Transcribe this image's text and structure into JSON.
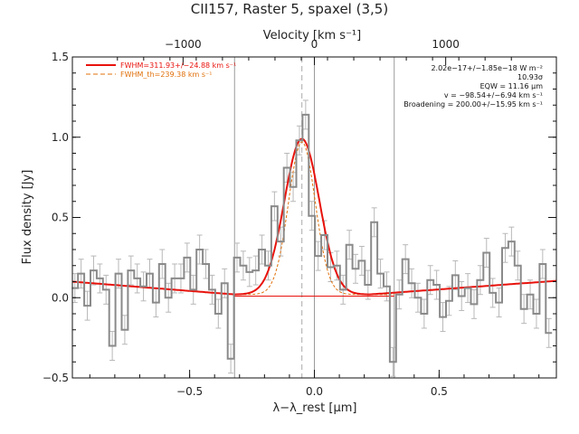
{
  "chart_data": {
    "type": "line",
    "title": "CII157, Raster 5, spaxel (3,5)",
    "xlabel": "λ−λ_rest [μm]",
    "ylabel": "Flux density [Jy]",
    "top_axis_label": "Velocity [km s⁻¹]",
    "xlim": [
      -0.97,
      0.97
    ],
    "ylim": [
      -0.5,
      1.5
    ],
    "x_ticks": [
      {
        "value": -0.5,
        "label": "−0.5"
      },
      {
        "value": 0.0,
        "label": "0.0"
      },
      {
        "value": 0.5,
        "label": "0.5"
      }
    ],
    "y_ticks": [
      {
        "value": -0.5,
        "label": "−0.5"
      },
      {
        "value": 0.0,
        "label": "0.0"
      },
      {
        "value": 0.5,
        "label": "0.5"
      },
      {
        "value": 1.0,
        "label": "1.0"
      },
      {
        "value": 1.5,
        "label": "1.5"
      }
    ],
    "top_ticks": [
      {
        "value": -1000,
        "label": "−1000"
      },
      {
        "value": 0,
        "label": "0"
      },
      {
        "value": 1000,
        "label": "1000"
      }
    ],
    "velocity_per_micron": 1900,
    "spectrum": {
      "bin_width": 0.025,
      "x": [
        -0.96,
        -0.935,
        -0.91,
        -0.885,
        -0.86,
        -0.835,
        -0.81,
        -0.785,
        -0.76,
        -0.735,
        -0.71,
        -0.685,
        -0.66,
        -0.635,
        -0.61,
        -0.585,
        -0.56,
        -0.535,
        -0.51,
        -0.485,
        -0.46,
        -0.435,
        -0.41,
        -0.385,
        -0.36,
        -0.335,
        -0.31,
        -0.285,
        -0.26,
        -0.235,
        -0.21,
        -0.185,
        -0.16,
        -0.135,
        -0.11,
        -0.085,
        -0.06,
        -0.035,
        -0.01,
        0.015,
        0.04,
        0.065,
        0.09,
        0.115,
        0.14,
        0.165,
        0.19,
        0.215,
        0.24,
        0.265,
        0.29,
        0.315,
        0.34,
        0.365,
        0.39,
        0.415,
        0.44,
        0.465,
        0.49,
        0.515,
        0.54,
        0.565,
        0.59,
        0.615,
        0.64,
        0.665,
        0.69,
        0.715,
        0.74,
        0.765,
        0.79,
        0.815,
        0.84,
        0.865,
        0.89,
        0.915,
        0.94
      ],
      "y": [
        0.06,
        0.15,
        -0.05,
        0.17,
        0.12,
        0.05,
        -0.3,
        0.15,
        -0.2,
        0.17,
        0.12,
        0.07,
        0.15,
        -0.03,
        0.21,
        0.0,
        0.12,
        0.12,
        0.25,
        0.05,
        0.3,
        0.21,
        0.05,
        -0.1,
        0.09,
        -0.38,
        0.25,
        0.2,
        0.16,
        0.17,
        0.3,
        0.2,
        0.57,
        0.35,
        0.81,
        0.69,
        0.98,
        1.14,
        0.51,
        0.26,
        0.39,
        0.19,
        0.2,
        0.05,
        0.33,
        0.18,
        0.23,
        0.08,
        0.47,
        0.15,
        0.07,
        -0.4,
        0.02,
        0.24,
        0.09,
        0.0,
        -0.1,
        0.11,
        0.08,
        -0.12,
        -0.02,
        0.14,
        0.01,
        0.06,
        -0.04,
        0.11,
        0.28,
        0.03,
        -0.03,
        0.31,
        0.35,
        0.2,
        -0.07,
        0.02,
        -0.1,
        0.21,
        -0.22
      ],
      "err": 0.09
    },
    "fit": {
      "center": -0.05,
      "amplitude": 0.97,
      "fwhm_um": 0.164,
      "baseline": [
        0.1,
        0.02,
        0.02,
        0.105
      ]
    },
    "theoretical": {
      "center": -0.05,
      "amplitude": 0.97,
      "fwhm_um": 0.126
    },
    "vlines": {
      "window": [
        -0.32,
        0.32
      ],
      "zero": 0.0,
      "center_dashed": -0.05
    },
    "colors": {
      "fit": "#e8120c",
      "theoretical": "#e0700a",
      "spectrum": "#8a8a8a",
      "errorbars": "#b8b8b8",
      "vline": "#9a9a9a"
    },
    "legend": {
      "placement": "top-left",
      "items": [
        {
          "label": "FWHM=311.93+/−24.88 km s⁻¹",
          "style": "solid",
          "color": "#e8120c"
        },
        {
          "label": "FWHM_th=239.38 km s⁻¹",
          "style": "dashed",
          "color": "#e0700a"
        }
      ]
    },
    "annotations": [
      "2.02e−17+/−1.85e−18 W m⁻²",
      "10.93σ",
      "EQW = 11.16 μm",
      "v = −98.54+/−6.94 km s⁻¹",
      "Broadening = 200.00+/−15.95 km s⁻¹"
    ],
    "grid": false
  }
}
